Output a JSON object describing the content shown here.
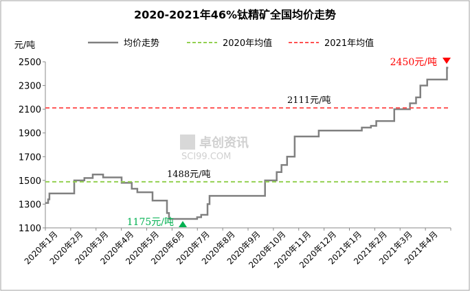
{
  "chart_data": {
    "type": "line",
    "title": "2020-2021年46%钛精矿全国均价走势",
    "ylabel": "元/吨",
    "xlabel": "",
    "ylim": [
      1100,
      2500
    ],
    "yticks": [
      1100,
      1300,
      1500,
      1700,
      1900,
      2100,
      2300,
      2500
    ],
    "categories": [
      "2020年1月",
      "2020年2月",
      "2020年3月",
      "2020年4月",
      "2020年5月",
      "2020年6月",
      "2020年7月",
      "2020年8月",
      "2020年9月",
      "2020年10月",
      "2020年11月",
      "2020年12月",
      "2021年1月",
      "2021年2月",
      "2021年3月",
      "2021年4月"
    ],
    "x_unit": "months since 2020年1月",
    "series": [
      {
        "name": "均价走势",
        "color": "#808080",
        "style": "step",
        "points": [
          [
            0,
            1310
          ],
          [
            0.11,
            1340
          ],
          [
            0.16,
            1390
          ],
          [
            1.14,
            1500
          ],
          [
            1.54,
            1520
          ],
          [
            1.87,
            1550
          ],
          [
            2.28,
            1525
          ],
          [
            3.01,
            1480
          ],
          [
            3.41,
            1430
          ],
          [
            3.63,
            1400
          ],
          [
            4.23,
            1330
          ],
          [
            4.8,
            1225
          ],
          [
            4.88,
            1175
          ],
          [
            5.99,
            1190
          ],
          [
            6.15,
            1210
          ],
          [
            6.4,
            1300
          ],
          [
            6.48,
            1370
          ],
          [
            8.67,
            1500
          ],
          [
            9.13,
            1570
          ],
          [
            9.32,
            1630
          ],
          [
            9.54,
            1700
          ],
          [
            9.84,
            1870
          ],
          [
            10.79,
            1920
          ],
          [
            12.49,
            1945
          ],
          [
            12.85,
            1960
          ],
          [
            13.06,
            2000
          ],
          [
            13.77,
            2100
          ],
          [
            14.39,
            2150
          ],
          [
            14.63,
            2200
          ],
          [
            14.8,
            2300
          ],
          [
            15.07,
            2350
          ],
          [
            15.85,
            2450
          ],
          [
            15.9,
            2450
          ]
        ]
      },
      {
        "name": "2020年均值",
        "color": "#92D050",
        "style": "dashed",
        "value": 1488
      },
      {
        "name": "2021年均值",
        "color": "#FF5050",
        "style": "dashed",
        "value": 2111
      }
    ],
    "annotations": [
      {
        "text": "2450元/吨",
        "color": "#FF0000",
        "marker": "down-triangle",
        "x": 15.9,
        "y": 2450
      },
      {
        "text": "2111元/吨",
        "color": "#000000",
        "x": 9.0,
        "y": 2111
      },
      {
        "text": "1488元/吨",
        "color": "#000000",
        "x": 5.5,
        "y": 1488
      },
      {
        "text": "1175元/吨",
        "color": "#00B050",
        "marker": "up-triangle",
        "x": 5.5,
        "y": 1175
      }
    ],
    "legend": "top",
    "grid": false,
    "watermark": [
      "卓创资讯",
      "SCI99.COM"
    ]
  }
}
